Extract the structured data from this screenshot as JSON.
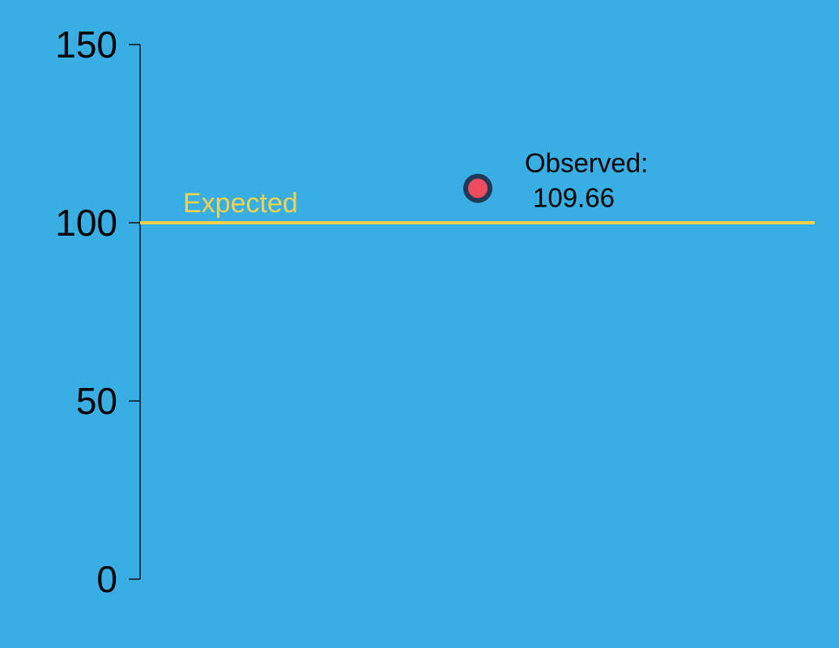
{
  "chart_data": {
    "type": "scatter",
    "ylim": [
      0,
      150
    ],
    "y_ticks": [
      "0",
      "50",
      "100",
      "150"
    ],
    "grid": false,
    "reference_line": {
      "y": 100,
      "label": "Expected",
      "color": "#F2D24B"
    },
    "points": [
      {
        "y": 109.66,
        "label_line1": "Observed:",
        "label_line2": "109.66",
        "fill": "#EE4B5E",
        "stroke": "#1F3A56"
      }
    ]
  },
  "colors": {
    "background": "#38AEE3",
    "axis": "#000000"
  }
}
